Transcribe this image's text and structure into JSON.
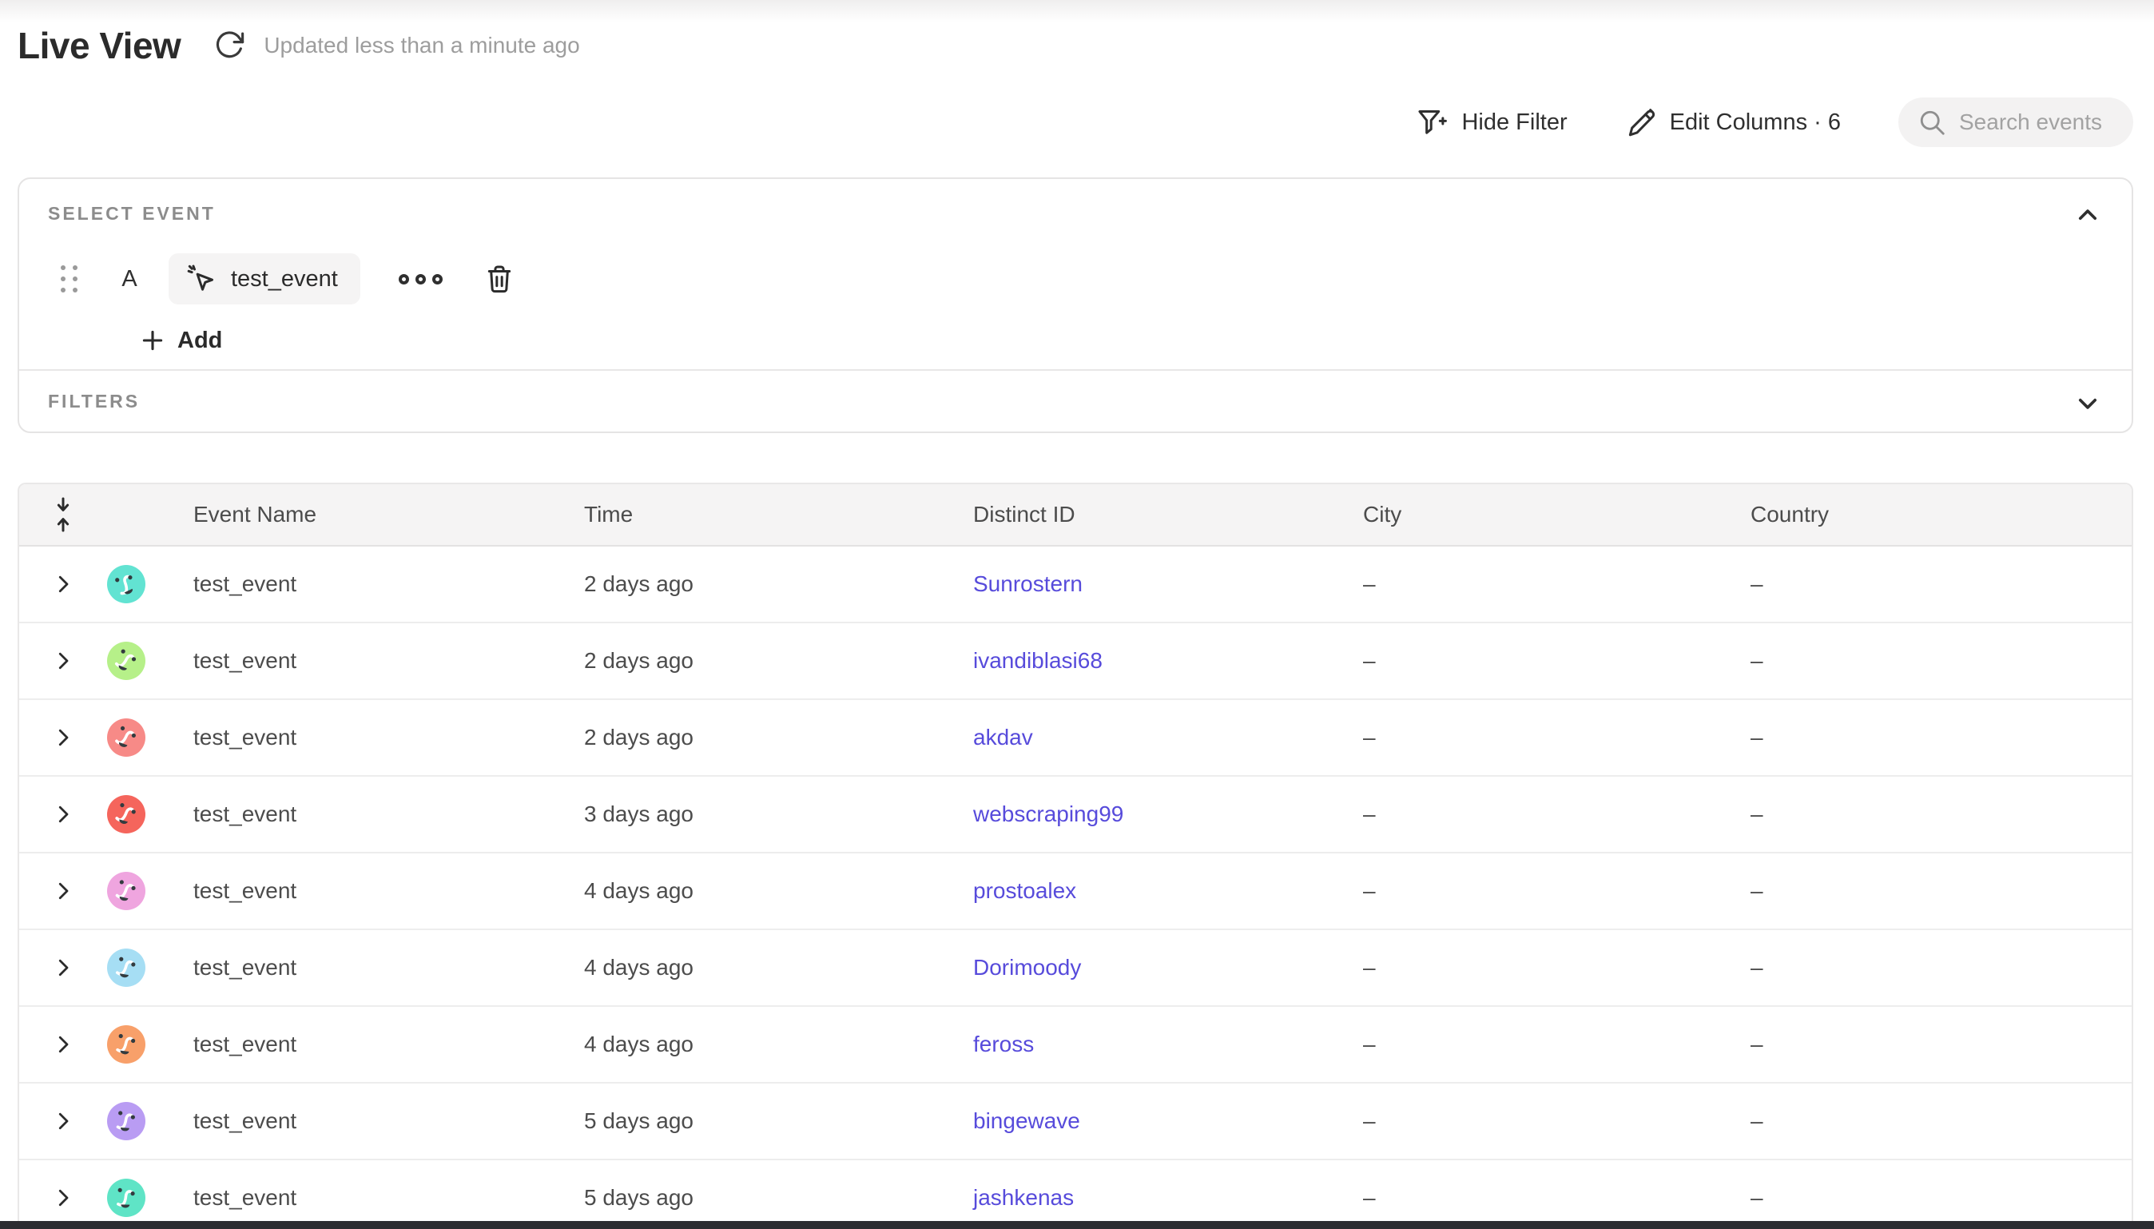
{
  "page": {
    "title": "Live View",
    "updated_text": "Updated less than a minute ago"
  },
  "toolbar": {
    "hide_filter_label": "Hide Filter",
    "edit_columns_label": "Edit Columns · 6",
    "search_placeholder": "Search events"
  },
  "select_event": {
    "section_label": "SELECT EVENT",
    "row_letter": "A",
    "event_name": "test_event",
    "add_label": "Add"
  },
  "filters": {
    "section_label": "FILTERS"
  },
  "table": {
    "columns": [
      "Event Name",
      "Time",
      "Distinct ID",
      "City",
      "Country"
    ],
    "rows": [
      {
        "event": "test_event",
        "time": "2 days ago",
        "distinct_id": "Sunrostern",
        "city": "–",
        "country": "–",
        "avatar_color": "#62e3d2"
      },
      {
        "event": "test_event",
        "time": "2 days ago",
        "distinct_id": "ivandiblasi68",
        "city": "–",
        "country": "–",
        "avatar_color": "#b6f089"
      },
      {
        "event": "test_event",
        "time": "2 days ago",
        "distinct_id": "akdav",
        "city": "–",
        "country": "–",
        "avatar_color": "#f78a87"
      },
      {
        "event": "test_event",
        "time": "3 days ago",
        "distinct_id": "webscraping99",
        "city": "–",
        "country": "–",
        "avatar_color": "#f5655c"
      },
      {
        "event": "test_event",
        "time": "4 days ago",
        "distinct_id": "prostoalex",
        "city": "–",
        "country": "–",
        "avatar_color": "#efa5df"
      },
      {
        "event": "test_event",
        "time": "4 days ago",
        "distinct_id": "Dorimoody",
        "city": "–",
        "country": "–",
        "avatar_color": "#a6def4"
      },
      {
        "event": "test_event",
        "time": "4 days ago",
        "distinct_id": "feross",
        "city": "–",
        "country": "–",
        "avatar_color": "#f8a06a"
      },
      {
        "event": "test_event",
        "time": "5 days ago",
        "distinct_id": "bingewave",
        "city": "–",
        "country": "–",
        "avatar_color": "#b99cf3"
      },
      {
        "event": "test_event",
        "time": "5 days ago",
        "distinct_id": "jashkenas",
        "city": "–",
        "country": "–",
        "avatar_color": "#5fe4c6"
      }
    ]
  },
  "colors": {
    "link": "#574bdb",
    "table_header_bg": "#f5f4f4",
    "accent_dark": "#2f2f2f"
  },
  "icons": {
    "refresh": "refresh-icon",
    "filter_plus": "filter-plus-icon",
    "pencil": "pencil-icon",
    "magnifier": "search-icon",
    "drag": "drag-handle-icon",
    "event_cursor": "event-cursor-icon",
    "more": "more-options-icon",
    "trash": "trash-icon",
    "plus": "plus-icon",
    "chevron_up": "chevron-up-icon",
    "chevron_down": "chevron-down-icon",
    "collapse_vertical": "collapse-vertical-icon",
    "chevron_right": "chevron-right-icon"
  }
}
